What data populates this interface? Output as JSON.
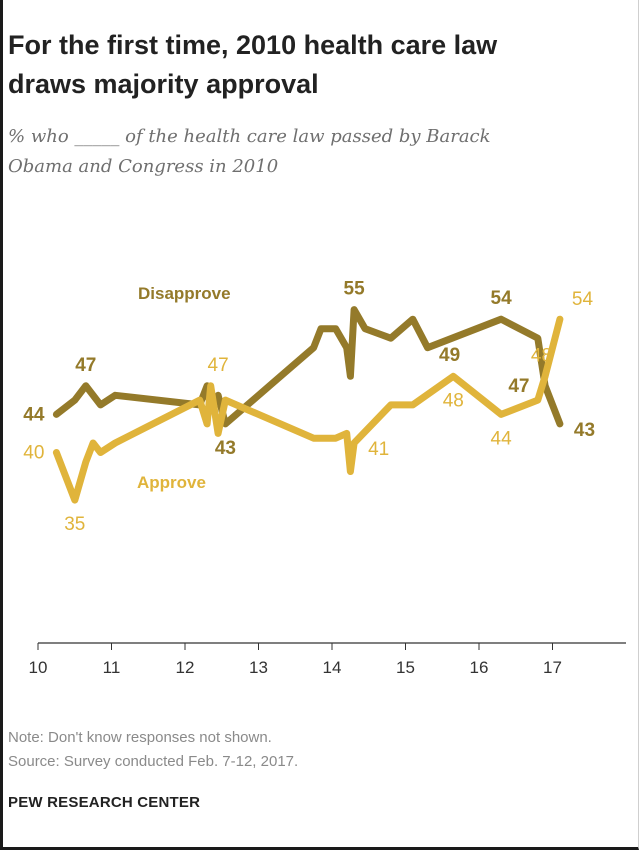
{
  "header": {
    "title_line1": "For the first time, 2010 health care law",
    "title_line2": "draws majority approval",
    "subtitle_line1": "% who _____ of the health care law passed by Barack",
    "subtitle_line2": "Obama and Congress in 2010"
  },
  "footer": {
    "note": "Note: Don't know responses not shown.",
    "source": "Source: Survey conducted Feb. 7-12, 2017.",
    "org": "PEW RESEARCH CENTER"
  },
  "chart_data": {
    "type": "line",
    "title": "For the first time, 2010 health care law draws majority approval",
    "subtitle": "% who _____ of the health care law passed by Barack Obama and Congress in 2010",
    "xlim": [
      10,
      18
    ],
    "ylim": [
      20,
      60
    ],
    "x_ticks": [
      10,
      11,
      12,
      13,
      14,
      15,
      16,
      17
    ],
    "grid": false,
    "colors": {
      "disapprove": "#947a2a",
      "approve": "#e0b43b",
      "axis": "#333333"
    },
    "series": [
      {
        "name": "Disapprove",
        "color": "#947a2a",
        "x": [
          10.25,
          10.5,
          10.65,
          10.85,
          11.05,
          12.2,
          12.3,
          12.35,
          12.45,
          12.55,
          13.75,
          13.85,
          14.05,
          14.2,
          14.25,
          14.3,
          14.45,
          14.8,
          15.1,
          15.3,
          16.3,
          16.8,
          16.9,
          17.1
        ],
        "y": [
          44,
          45.5,
          47,
          45,
          46,
          45,
          47,
          44.5,
          46,
          43,
          51,
          53,
          53,
          51,
          48,
          55,
          53,
          52,
          54,
          51,
          54,
          52,
          47,
          43
        ]
      },
      {
        "name": "Approve",
        "color": "#e0b43b",
        "x": [
          10.25,
          10.5,
          10.65,
          10.75,
          10.85,
          11.05,
          12.2,
          12.3,
          12.35,
          12.45,
          12.55,
          13.75,
          14.05,
          14.2,
          14.25,
          14.3,
          14.8,
          15.1,
          15.65,
          16.3,
          16.8,
          16.9,
          17.1
        ],
        "y": [
          40,
          35,
          39,
          41,
          40,
          41,
          45.5,
          43,
          47,
          42,
          45.5,
          41.5,
          41.5,
          42,
          38,
          41,
          45,
          45,
          48,
          44,
          45.5,
          48,
          54
        ]
      }
    ],
    "series_labels": {
      "disapprove": "Disapprove",
      "approve": "Approve"
    },
    "data_labels": [
      {
        "series": "disapprove",
        "text": "44",
        "x": 10.25,
        "y": 44,
        "place": "left"
      },
      {
        "series": "disapprove",
        "text": "47",
        "x": 10.65,
        "y": 47,
        "place": "above"
      },
      {
        "series": "disapprove",
        "text": "43",
        "x": 12.55,
        "y": 43,
        "place": "below"
      },
      {
        "series": "disapprove",
        "text": "55",
        "x": 14.3,
        "y": 55,
        "place": "above"
      },
      {
        "series": "disapprove",
        "text": "49",
        "x": 15.6,
        "y": 49,
        "place": "center"
      },
      {
        "series": "disapprove",
        "text": "54",
        "x": 16.3,
        "y": 54,
        "place": "above"
      },
      {
        "series": "disapprove",
        "text": "47",
        "x": 16.85,
        "y": 47,
        "place": "left"
      },
      {
        "series": "disapprove",
        "text": "43",
        "x": 17.1,
        "y": 43,
        "place": "right"
      },
      {
        "series": "approve",
        "text": "40",
        "x": 10.25,
        "y": 40,
        "place": "left"
      },
      {
        "series": "approve",
        "text": "35",
        "x": 10.5,
        "y": 35,
        "place": "below"
      },
      {
        "series": "approve",
        "text": "47",
        "x": 12.45,
        "y": 47,
        "place": "above"
      },
      {
        "series": "approve",
        "text": "41",
        "x": 14.3,
        "y": 41,
        "place": "right"
      },
      {
        "series": "approve",
        "text": "48",
        "x": 15.65,
        "y": 48,
        "place": "below"
      },
      {
        "series": "approve",
        "text": "44",
        "x": 16.3,
        "y": 44,
        "place": "below"
      },
      {
        "series": "approve",
        "text": "48",
        "x": 16.85,
        "y": 48,
        "place": "above"
      },
      {
        "series": "approve",
        "text": "54",
        "x": 17.1,
        "y": 54,
        "place": "above-right"
      }
    ]
  }
}
